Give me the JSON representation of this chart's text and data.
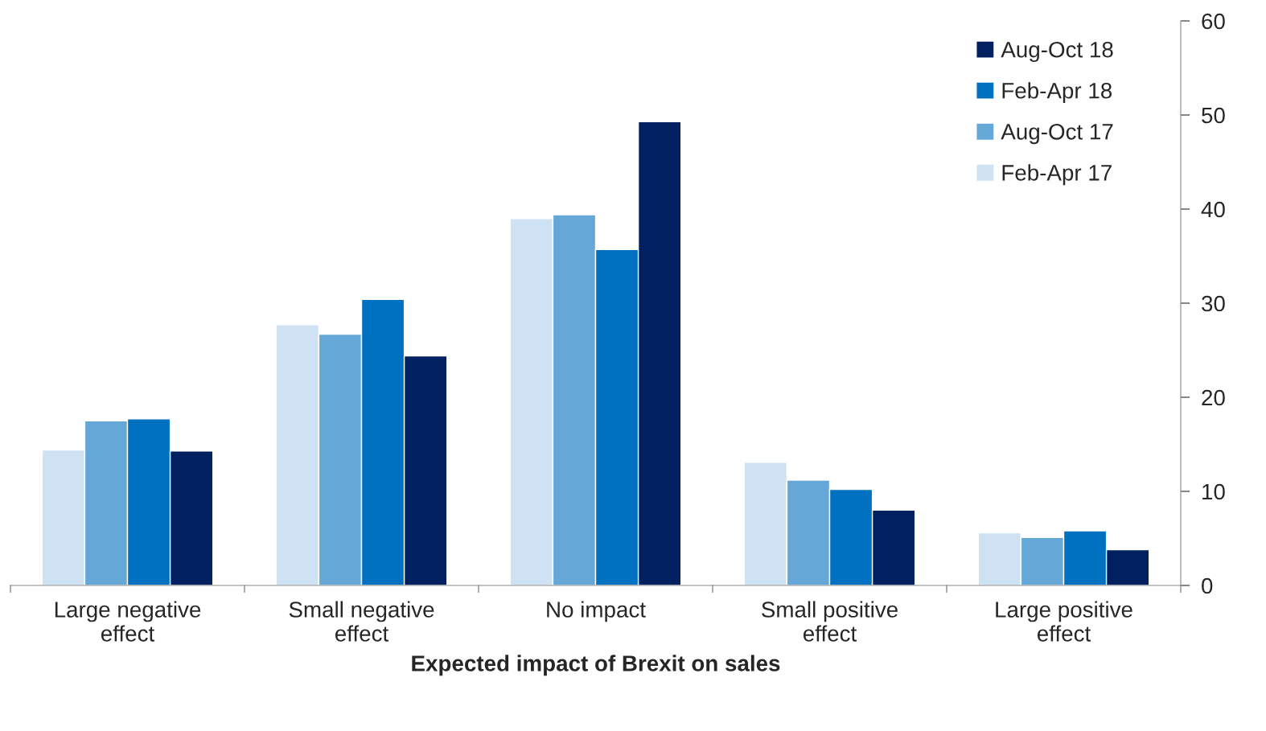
{
  "chart_data": {
    "type": "bar",
    "xlabel": "Expected impact of Brexit on sales",
    "categories": [
      "Large negative\neffect",
      "Small negative\neffect",
      "No impact",
      "Small positive\neffect",
      "Large positive\neffect"
    ],
    "series": [
      {
        "name": "Feb-Apr 17",
        "color": "#cfe2f3",
        "values": [
          14.4,
          27.7,
          39.0,
          13.1,
          5.6
        ]
      },
      {
        "name": "Aug-Oct 17",
        "color": "#65a8d8",
        "values": [
          17.5,
          26.7,
          39.4,
          11.2,
          5.1
        ]
      },
      {
        "name": "Feb-Apr 18",
        "color": "#0070c0",
        "values": [
          17.7,
          30.4,
          35.7,
          10.2,
          5.8
        ]
      },
      {
        "name": "Aug-Oct 18",
        "color": "#002060",
        "values": [
          14.3,
          24.4,
          49.3,
          8.0,
          3.8
        ]
      }
    ],
    "ylim": [
      0,
      60
    ],
    "yticks": [
      0,
      10,
      20,
      30,
      40,
      50,
      60
    ],
    "grid": false,
    "legend": "top right"
  }
}
